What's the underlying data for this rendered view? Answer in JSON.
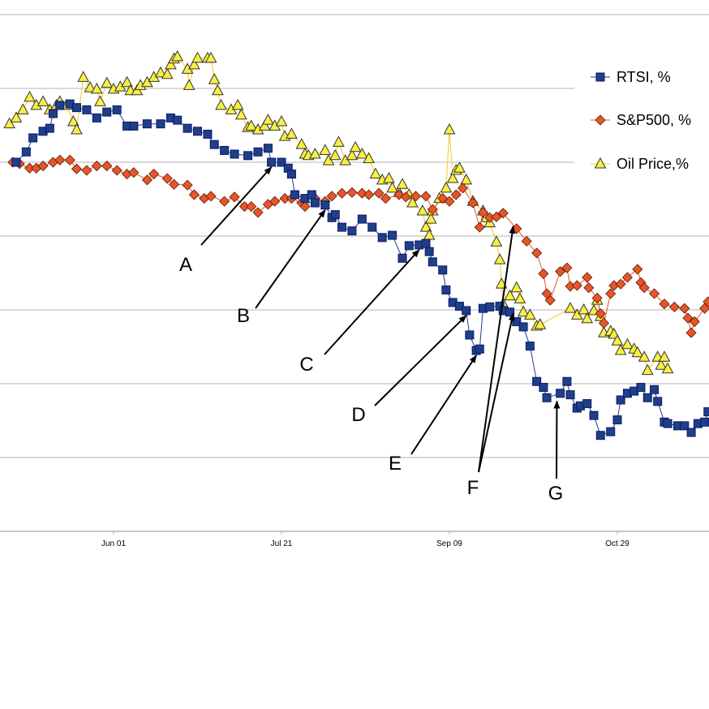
{
  "chart_data": {
    "type": "line",
    "title": "",
    "xlabel": "",
    "ylabel": "",
    "x_units": "days relative to Jun 01",
    "y_units": "unlabeled gridline units (axis = 0)",
    "xlim": [
      -34,
      177
    ],
    "ylim": [
      0,
      7
    ],
    "grid": true,
    "legend_position": "right",
    "x_ticks": [
      {
        "day": 0,
        "label": "Jun 01"
      },
      {
        "day": 50,
        "label": "Jul 21"
      },
      {
        "day": 100,
        "label": "Sep 09"
      },
      {
        "day": 150,
        "label": "Oct 29"
      }
    ],
    "series": [
      {
        "name": "RTSI, %",
        "marker": "square",
        "color": "#1f3f86",
        "points": [
          [
            -29,
            5.0
          ],
          [
            -26,
            5.14
          ],
          [
            -24,
            5.33
          ],
          [
            -21,
            5.42
          ],
          [
            -19,
            5.46
          ],
          [
            -18,
            5.66
          ],
          [
            -16,
            5.77
          ],
          [
            -13,
            5.79
          ],
          [
            -11,
            5.74
          ],
          [
            -8,
            5.71
          ],
          [
            -5,
            5.6
          ],
          [
            -2,
            5.68
          ],
          [
            1,
            5.71
          ],
          [
            4,
            5.49
          ],
          [
            6,
            5.49
          ],
          [
            10,
            5.52
          ],
          [
            14,
            5.52
          ],
          [
            17,
            5.6
          ],
          [
            19,
            5.57
          ],
          [
            22,
            5.46
          ],
          [
            25,
            5.42
          ],
          [
            28,
            5.38
          ],
          [
            30,
            5.24
          ],
          [
            33,
            5.16
          ],
          [
            36,
            5.11
          ],
          [
            40,
            5.09
          ],
          [
            43,
            5.14
          ],
          [
            46,
            5.19
          ],
          [
            47,
            5.0
          ],
          [
            50,
            5.0
          ],
          [
            52,
            4.92
          ],
          [
            53,
            4.84
          ],
          [
            54,
            4.56
          ],
          [
            57,
            4.51
          ],
          [
            59,
            4.56
          ],
          [
            60,
            4.45
          ],
          [
            63,
            4.42
          ],
          [
            65,
            4.25
          ],
          [
            66,
            4.29
          ],
          [
            68,
            4.12
          ],
          [
            71,
            4.07
          ],
          [
            74,
            4.23
          ],
          [
            77,
            4.12
          ],
          [
            80,
            3.98
          ],
          [
            83,
            4.01
          ],
          [
            86,
            3.7
          ],
          [
            88,
            3.87
          ],
          [
            91,
            3.88
          ],
          [
            93,
            3.9
          ],
          [
            94,
            3.79
          ],
          [
            95,
            3.65
          ],
          [
            98,
            3.54
          ],
          [
            99,
            3.27
          ],
          [
            101,
            3.1
          ],
          [
            103,
            3.05
          ],
          [
            105,
            2.99
          ],
          [
            106,
            2.66
          ],
          [
            108,
            2.45
          ],
          [
            109,
            2.47
          ],
          [
            110,
            3.02
          ],
          [
            112,
            3.04
          ],
          [
            115,
            3.05
          ],
          [
            116,
            2.99
          ],
          [
            118,
            2.97
          ],
          [
            120,
            2.84
          ],
          [
            122,
            2.77
          ],
          [
            124,
            2.51
          ],
          [
            126,
            2.03
          ],
          [
            128,
            1.95
          ],
          [
            129,
            1.81
          ],
          [
            133,
            1.87
          ],
          [
            135,
            2.03
          ],
          [
            136,
            1.85
          ],
          [
            138,
            1.67
          ],
          [
            139,
            1.7
          ],
          [
            141,
            1.73
          ],
          [
            143,
            1.57
          ],
          [
            145,
            1.3
          ],
          [
            148,
            1.35
          ],
          [
            150,
            1.51
          ],
          [
            151,
            1.78
          ],
          [
            153,
            1.87
          ],
          [
            155,
            1.9
          ],
          [
            157,
            1.95
          ],
          [
            159,
            1.81
          ],
          [
            161,
            1.92
          ],
          [
            162,
            1.76
          ],
          [
            164,
            1.48
          ],
          [
            165,
            1.46
          ],
          [
            168,
            1.43
          ],
          [
            170,
            1.43
          ],
          [
            172,
            1.34
          ],
          [
            174,
            1.46
          ],
          [
            176,
            1.48
          ],
          [
            177,
            1.62
          ]
        ]
      },
      {
        "name": "S&P500, %",
        "marker": "diamond",
        "color": "#e8552b",
        "points": [
          [
            -30,
            5.0
          ],
          [
            -28,
            4.98
          ],
          [
            -25,
            4.92
          ],
          [
            -23,
            4.92
          ],
          [
            -21,
            4.95
          ],
          [
            -18,
            5.0
          ],
          [
            -16,
            5.03
          ],
          [
            -13,
            5.03
          ],
          [
            -11,
            4.91
          ],
          [
            -8,
            4.89
          ],
          [
            -5,
            4.95
          ],
          [
            -2,
            4.95
          ],
          [
            1,
            4.89
          ],
          [
            4,
            4.84
          ],
          [
            6,
            4.86
          ],
          [
            10,
            4.76
          ],
          [
            12,
            4.84
          ],
          [
            16,
            4.78
          ],
          [
            18,
            4.7
          ],
          [
            22,
            4.69
          ],
          [
            24,
            4.56
          ],
          [
            27,
            4.51
          ],
          [
            29,
            4.54
          ],
          [
            33,
            4.47
          ],
          [
            36,
            4.53
          ],
          [
            39,
            4.4
          ],
          [
            41,
            4.4
          ],
          [
            43,
            4.32
          ],
          [
            46,
            4.43
          ],
          [
            48,
            4.47
          ],
          [
            51,
            4.51
          ],
          [
            53,
            4.51
          ],
          [
            56,
            4.45
          ],
          [
            57,
            4.4
          ],
          [
            60,
            4.51
          ],
          [
            63,
            4.47
          ],
          [
            65,
            4.54
          ],
          [
            68,
            4.58
          ],
          [
            71,
            4.59
          ],
          [
            74,
            4.58
          ],
          [
            76,
            4.56
          ],
          [
            79,
            4.58
          ],
          [
            81,
            4.51
          ],
          [
            85,
            4.56
          ],
          [
            87,
            4.53
          ],
          [
            90,
            4.54
          ],
          [
            93,
            4.54
          ],
          [
            95,
            4.36
          ],
          [
            98,
            4.51
          ],
          [
            100,
            4.47
          ],
          [
            102,
            4.56
          ],
          [
            104,
            4.65
          ],
          [
            107,
            4.45
          ],
          [
            109,
            4.12
          ],
          [
            110,
            4.32
          ],
          [
            112,
            4.25
          ],
          [
            114,
            4.26
          ],
          [
            116,
            4.31
          ],
          [
            120,
            4.1
          ],
          [
            123,
            3.93
          ],
          [
            126,
            3.77
          ],
          [
            128,
            3.49
          ],
          [
            129,
            3.22
          ],
          [
            130,
            3.13
          ],
          [
            133,
            3.52
          ],
          [
            135,
            3.57
          ],
          [
            136,
            3.32
          ],
          [
            138,
            3.33
          ],
          [
            141,
            3.44
          ],
          [
            141.5,
            3.3
          ],
          [
            144,
            3.16
          ],
          [
            145,
            2.95
          ],
          [
            146,
            2.82
          ],
          [
            148,
            3.22
          ],
          [
            149,
            3.33
          ],
          [
            151,
            3.35
          ],
          [
            153,
            3.44
          ],
          [
            156,
            3.55
          ],
          [
            157,
            3.37
          ],
          [
            158,
            3.3
          ],
          [
            161,
            3.22
          ],
          [
            164,
            3.08
          ],
          [
            167,
            3.04
          ],
          [
            170,
            3.02
          ],
          [
            171,
            2.89
          ],
          [
            172,
            2.69
          ],
          [
            173,
            2.84
          ],
          [
            176,
            3.02
          ],
          [
            177,
            3.11
          ]
        ]
      },
      {
        "name": "Oil Price,%",
        "marker": "triangle",
        "color": "#f0c828",
        "points": [
          [
            -31,
            5.52
          ],
          [
            -29,
            5.6
          ],
          [
            -27,
            5.71
          ],
          [
            -25,
            5.88
          ],
          [
            -23,
            5.77
          ],
          [
            -21,
            5.82
          ],
          [
            -19,
            5.71
          ],
          [
            -17,
            5.77
          ],
          [
            -16,
            5.82
          ],
          [
            -14,
            5.77
          ],
          [
            -12,
            5.55
          ],
          [
            -11,
            5.44
          ],
          [
            -9,
            6.15
          ],
          [
            -7,
            6.01
          ],
          [
            -5,
            5.99
          ],
          [
            -4,
            5.82
          ],
          [
            -2,
            6.07
          ],
          [
            0,
            5.99
          ],
          [
            2,
            6.02
          ],
          [
            4,
            6.08
          ],
          [
            5,
            5.97
          ],
          [
            7,
            5.97
          ],
          [
            8,
            6.04
          ],
          [
            10,
            6.08
          ],
          [
            12,
            6.15
          ],
          [
            14,
            6.21
          ],
          [
            16,
            6.19
          ],
          [
            17,
            6.32
          ],
          [
            18,
            6.4
          ],
          [
            19,
            6.43
          ],
          [
            22,
            6.26
          ],
          [
            22.5,
            6.04
          ],
          [
            24,
            6.32
          ],
          [
            25,
            6.41
          ],
          [
            28,
            6.41
          ],
          [
            29,
            6.41
          ],
          [
            30,
            6.12
          ],
          [
            31,
            5.97
          ],
          [
            32,
            5.77
          ],
          [
            35,
            5.71
          ],
          [
            37,
            5.77
          ],
          [
            38,
            5.64
          ],
          [
            40,
            5.47
          ],
          [
            41,
            5.49
          ],
          [
            43,
            5.44
          ],
          [
            45,
            5.49
          ],
          [
            46,
            5.57
          ],
          [
            48,
            5.49
          ],
          [
            50,
            5.55
          ],
          [
            51,
            5.35
          ],
          [
            53,
            5.38
          ],
          [
            56,
            5.24
          ],
          [
            57,
            5.11
          ],
          [
            58,
            5.09
          ],
          [
            60,
            5.11
          ],
          [
            63,
            5.16
          ],
          [
            64,
            5.02
          ],
          [
            66,
            5.09
          ],
          [
            67,
            5.27
          ],
          [
            69,
            5.02
          ],
          [
            71,
            5.09
          ],
          [
            72,
            5.2
          ],
          [
            74,
            5.11
          ],
          [
            76,
            5.05
          ],
          [
            78,
            4.84
          ],
          [
            80,
            4.76
          ],
          [
            82,
            4.78
          ],
          [
            83,
            4.65
          ],
          [
            85,
            4.59
          ],
          [
            86,
            4.7
          ],
          [
            88,
            4.56
          ],
          [
            89,
            4.45
          ],
          [
            92,
            4.34
          ],
          [
            93,
            4.12
          ],
          [
            94,
            4.01
          ],
          [
            94.5,
            4.23
          ],
          [
            95,
            4.34
          ],
          [
            97,
            4.51
          ],
          [
            99,
            4.65
          ],
          [
            100,
            5.44
          ],
          [
            101,
            4.78
          ],
          [
            102,
            4.89
          ],
          [
            103,
            4.92
          ],
          [
            105,
            4.76
          ],
          [
            107,
            4.47
          ],
          [
            110,
            4.34
          ],
          [
            111,
            4.25
          ],
          [
            112,
            4.18
          ],
          [
            114,
            3.92
          ],
          [
            115,
            3.68
          ],
          [
            115.5,
            3.35
          ],
          [
            116,
            3.08
          ],
          [
            118,
            3.19
          ],
          [
            120,
            3.3
          ],
          [
            121,
            3.15
          ],
          [
            122,
            2.97
          ],
          [
            124,
            2.93
          ],
          [
            126,
            2.78
          ],
          [
            127,
            2.8
          ],
          [
            136,
            3.02
          ],
          [
            138,
            2.93
          ],
          [
            140,
            3.0
          ],
          [
            141,
            2.88
          ],
          [
            143,
            2.99
          ],
          [
            144,
            3.13
          ],
          [
            145,
            2.91
          ],
          [
            146,
            2.69
          ],
          [
            148,
            2.71
          ],
          [
            149,
            2.67
          ],
          [
            150,
            2.58
          ],
          [
            151,
            2.45
          ],
          [
            153,
            2.53
          ],
          [
            155,
            2.47
          ],
          [
            156,
            2.42
          ],
          [
            158,
            2.36
          ],
          [
            159,
            2.18
          ],
          [
            162,
            2.36
          ],
          [
            163,
            2.25
          ],
          [
            164,
            2.36
          ],
          [
            165,
            2.2
          ]
        ]
      }
    ],
    "annotations": [
      {
        "label": "A",
        "target": [
          [
            47,
            5.0
          ]
        ]
      },
      {
        "label": "B",
        "target": [
          [
            63,
            4.42
          ]
        ]
      },
      {
        "label": "C",
        "target": [
          [
            91,
            3.88
          ]
        ]
      },
      {
        "label": "D",
        "target": [
          [
            105,
            2.99
          ]
        ]
      },
      {
        "label": "E",
        "target": [
          [
            108,
            2.45
          ]
        ]
      },
      {
        "label": "F",
        "target": [
          [
            119,
            4.2
          ],
          [
            119,
            3.02
          ]
        ]
      },
      {
        "label": "G",
        "target": [
          [
            132,
            1.83
          ]
        ]
      }
    ]
  }
}
